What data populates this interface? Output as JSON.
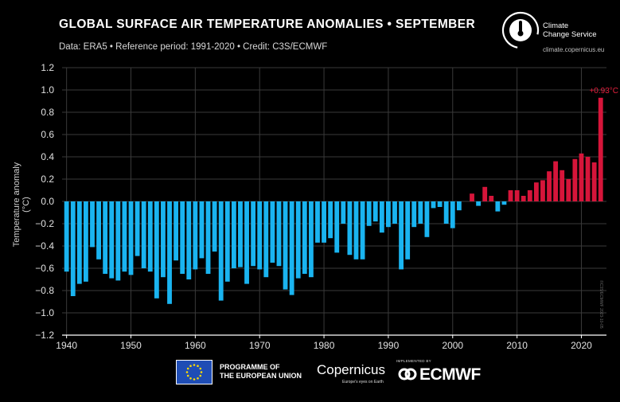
{
  "header": {
    "title": "GLOBAL SURFACE AIR TEMPERATURE ANOMALIES • SEPTEMBER",
    "subtitle": "Data: ERA5 • Reference period: 1991-2020 • Credit: C3S/ECMWF"
  },
  "logo": {
    "name_line1": "Climate",
    "name_line2": "Change Service",
    "url": "climate.copernicus.eu",
    "icon": "thermometer-globe-icon"
  },
  "side_credit": "©C3S/ECMWF 2023-10-05",
  "footer": {
    "eu_line1": "PROGRAMME OF",
    "eu_line2": "THE EUROPEAN UNION",
    "copernicus": "Copernicus",
    "copernicus_tagline": "Europe's eyes on Earth",
    "ecmwf_implemented": "IMPLEMENTED BY",
    "ecmwf": "ECMWF"
  },
  "colors": {
    "negative": "#1ab4f0",
    "positive": "#d6153a",
    "grid": "#3a3a3a",
    "axis": "#ffffff",
    "highlight_label": "#e8213f"
  },
  "chart_data": {
    "type": "bar",
    "title": "GLOBAL SURFACE AIR TEMPERATURE ANOMALIES • SEPTEMBER",
    "ylabel": "Temperature anomaly (°C)",
    "xlabel": "",
    "ylim": [
      -1.2,
      1.2
    ],
    "xlim": [
      1939.3,
      2023.9
    ],
    "yticks": [
      "−1.2",
      "−1.0",
      "−0.8",
      "−0.6",
      "−0.4",
      "−0.2",
      "0.0",
      "0.2",
      "0.4",
      "0.6",
      "0.8",
      "1.0",
      "1.2"
    ],
    "ytick_values": [
      -1.2,
      -1.0,
      -0.8,
      -0.6,
      -0.4,
      -0.2,
      0.0,
      0.2,
      0.4,
      0.6,
      0.8,
      1.0,
      1.2
    ],
    "xticks": [
      "1940",
      "1950",
      "1960",
      "1970",
      "1980",
      "1990",
      "2000",
      "2010",
      "2020"
    ],
    "xtick_values": [
      1940,
      1950,
      1960,
      1970,
      1980,
      1990,
      2000,
      2010,
      2020
    ],
    "grid": true,
    "annotation": {
      "year": 2023,
      "label": "+0.93°C"
    },
    "years": [
      1940,
      1941,
      1942,
      1943,
      1944,
      1945,
      1946,
      1947,
      1948,
      1949,
      1950,
      1951,
      1952,
      1953,
      1954,
      1955,
      1956,
      1957,
      1958,
      1959,
      1960,
      1961,
      1962,
      1963,
      1964,
      1965,
      1966,
      1967,
      1968,
      1969,
      1970,
      1971,
      1972,
      1973,
      1974,
      1975,
      1976,
      1977,
      1978,
      1979,
      1980,
      1981,
      1982,
      1983,
      1984,
      1985,
      1986,
      1987,
      1988,
      1989,
      1990,
      1991,
      1992,
      1993,
      1994,
      1995,
      1996,
      1997,
      1998,
      1999,
      2000,
      2001,
      2002,
      2003,
      2004,
      2005,
      2006,
      2007,
      2008,
      2009,
      2010,
      2011,
      2012,
      2013,
      2014,
      2015,
      2016,
      2017,
      2018,
      2019,
      2020,
      2021,
      2022,
      2023
    ],
    "values": [
      -0.63,
      -0.85,
      -0.74,
      -0.72,
      -0.41,
      -0.52,
      -0.65,
      -0.69,
      -0.71,
      -0.63,
      -0.66,
      -0.49,
      -0.6,
      -0.63,
      -0.87,
      -0.68,
      -0.92,
      -0.53,
      -0.65,
      -0.7,
      -0.61,
      -0.51,
      -0.65,
      -0.45,
      -0.89,
      -0.72,
      -0.6,
      -0.59,
      -0.74,
      -0.58,
      -0.61,
      -0.68,
      -0.55,
      -0.58,
      -0.79,
      -0.84,
      -0.69,
      -0.65,
      -0.68,
      -0.37,
      -0.37,
      -0.33,
      -0.46,
      -0.2,
      -0.48,
      -0.52,
      -0.52,
      -0.22,
      -0.18,
      -0.28,
      -0.23,
      -0.2,
      -0.61,
      -0.52,
      -0.23,
      -0.2,
      -0.32,
      -0.06,
      -0.05,
      -0.2,
      -0.24,
      -0.08,
      0.0,
      0.07,
      -0.04,
      0.13,
      0.05,
      -0.09,
      -0.03,
      0.1,
      0.1,
      0.05,
      0.1,
      0.17,
      0.19,
      0.27,
      0.36,
      0.28,
      0.2,
      0.38,
      0.43,
      0.4,
      0.35,
      0.93
    ]
  }
}
